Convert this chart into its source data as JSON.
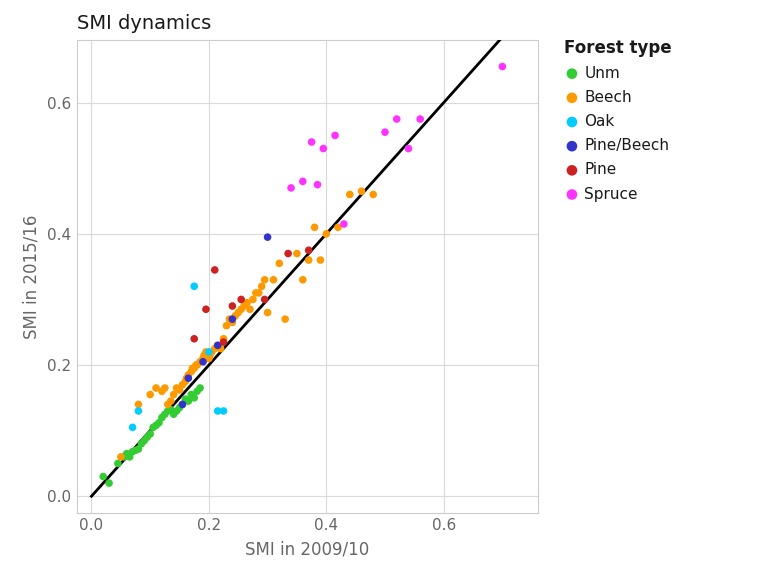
{
  "title": "SMI dynamics",
  "xlabel": "SMI in 2009/10",
  "ylabel": "SMI in 2015/16",
  "xlim": [
    -0.025,
    0.76
  ],
  "ylim": [
    -0.025,
    0.695
  ],
  "xticks": [
    0.0,
    0.2,
    0.4,
    0.6
  ],
  "yticks": [
    0.0,
    0.2,
    0.4,
    0.6
  ],
  "legend_title": "Forest type",
  "background_color": "#ffffff",
  "panel_background": "#ffffff",
  "grid_color": "#d9d9d9",
  "axis_text_color": "#666666",
  "title_color": "#1a1a1a",
  "series": [
    {
      "label": "Unm",
      "color": "#33cc33",
      "x": [
        0.02,
        0.03,
        0.045,
        0.055,
        0.06,
        0.065,
        0.07,
        0.075,
        0.08,
        0.085,
        0.09,
        0.095,
        0.1,
        0.105,
        0.11,
        0.115,
        0.12,
        0.125,
        0.13,
        0.135,
        0.14,
        0.145,
        0.15,
        0.155,
        0.16,
        0.165,
        0.17,
        0.175,
        0.18,
        0.185
      ],
      "y": [
        0.03,
        0.02,
        0.05,
        0.06,
        0.065,
        0.06,
        0.068,
        0.07,
        0.072,
        0.08,
        0.085,
        0.09,
        0.095,
        0.105,
        0.108,
        0.112,
        0.12,
        0.125,
        0.13,
        0.132,
        0.125,
        0.13,
        0.135,
        0.14,
        0.148,
        0.145,
        0.155,
        0.15,
        0.16,
        0.165
      ]
    },
    {
      "label": "Beech",
      "color": "#ff9900",
      "x": [
        0.05,
        0.08,
        0.1,
        0.11,
        0.12,
        0.125,
        0.13,
        0.135,
        0.14,
        0.145,
        0.15,
        0.155,
        0.16,
        0.162,
        0.165,
        0.17,
        0.172,
        0.175,
        0.178,
        0.18,
        0.185,
        0.19,
        0.192,
        0.195,
        0.2,
        0.202,
        0.205,
        0.21,
        0.215,
        0.22,
        0.225,
        0.23,
        0.235,
        0.24,
        0.245,
        0.25,
        0.255,
        0.26,
        0.265,
        0.27,
        0.275,
        0.28,
        0.285,
        0.29,
        0.295,
        0.3,
        0.31,
        0.32,
        0.33,
        0.35,
        0.36,
        0.37,
        0.38,
        0.39,
        0.4,
        0.42,
        0.44,
        0.46,
        0.48
      ],
      "y": [
        0.06,
        0.14,
        0.155,
        0.165,
        0.16,
        0.165,
        0.14,
        0.145,
        0.155,
        0.165,
        0.162,
        0.17,
        0.175,
        0.18,
        0.185,
        0.19,
        0.195,
        0.195,
        0.2,
        0.2,
        0.205,
        0.21,
        0.215,
        0.22,
        0.21,
        0.215,
        0.22,
        0.225,
        0.23,
        0.225,
        0.24,
        0.26,
        0.27,
        0.265,
        0.275,
        0.28,
        0.285,
        0.29,
        0.295,
        0.285,
        0.3,
        0.31,
        0.31,
        0.32,
        0.33,
        0.28,
        0.33,
        0.355,
        0.27,
        0.37,
        0.33,
        0.36,
        0.41,
        0.36,
        0.4,
        0.41,
        0.46,
        0.465,
        0.46
      ]
    },
    {
      "label": "Oak",
      "color": "#00ccff",
      "x": [
        0.07,
        0.08,
        0.175,
        0.2,
        0.215,
        0.225
      ],
      "y": [
        0.105,
        0.13,
        0.32,
        0.22,
        0.13,
        0.13
      ]
    },
    {
      "label": "Pine/Beech",
      "color": "#3333cc",
      "x": [
        0.155,
        0.165,
        0.19,
        0.215,
        0.24,
        0.3
      ],
      "y": [
        0.14,
        0.18,
        0.205,
        0.23,
        0.27,
        0.395
      ]
    },
    {
      "label": "Pine",
      "color": "#cc2222",
      "x": [
        0.175,
        0.195,
        0.21,
        0.225,
        0.24,
        0.255,
        0.295,
        0.335,
        0.37
      ],
      "y": [
        0.24,
        0.285,
        0.345,
        0.235,
        0.29,
        0.3,
        0.3,
        0.37,
        0.375
      ]
    },
    {
      "label": "Spruce",
      "color": "#ff33ff",
      "x": [
        0.34,
        0.36,
        0.375,
        0.385,
        0.395,
        0.415,
        0.43,
        0.5,
        0.52,
        0.54,
        0.56,
        0.7
      ],
      "y": [
        0.47,
        0.48,
        0.54,
        0.475,
        0.53,
        0.55,
        0.415,
        0.555,
        0.575,
        0.53,
        0.575,
        0.655
      ]
    }
  ]
}
